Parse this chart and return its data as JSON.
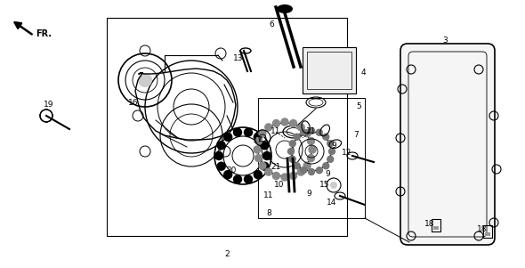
{
  "bg_color": "#ffffff",
  "line_color": "#000000",
  "fig_w": 5.9,
  "fig_h": 3.01,
  "dpi": 100
}
